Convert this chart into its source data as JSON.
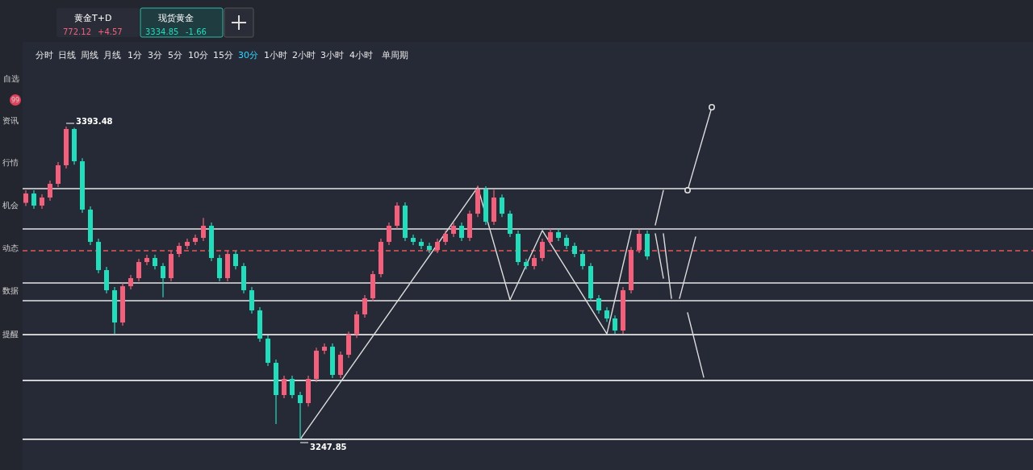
{
  "chart_data": {
    "type": "candlestick",
    "categories": [
      null,
      null,
      null,
      null,
      null,
      null,
      null,
      null,
      null,
      null,
      null,
      null,
      null,
      null,
      null,
      null,
      null,
      null,
      null,
      null,
      null,
      null,
      null,
      null,
      null,
      null,
      null,
      null,
      null,
      null,
      null,
      null,
      null,
      null,
      null,
      null,
      null,
      null,
      null,
      null,
      null,
      null,
      null,
      null,
      null,
      null,
      null,
      null,
      null,
      null,
      null,
      null,
      null,
      null,
      null,
      null,
      null,
      null,
      null,
      null,
      null,
      null,
      null,
      null,
      null,
      null,
      null,
      null,
      null,
      null,
      null,
      null,
      null,
      null,
      null,
      null,
      null,
      null,
      null,
      null,
      null,
      null,
      null,
      null,
      null,
      null,
      null,
      null,
      null,
      null,
      null,
      null,
      null,
      null,
      null,
      null,
      null,
      null,
      null,
      null,
      null,
      null,
      null,
      null,
      null,
      null,
      null,
      null,
      null,
      null,
      null,
      null,
      null,
      null,
      null,
      null,
      null,
      null,
      null,
      null,
      null,
      null,
      null,
      null,
      null
    ],
    "colors": [
      "#f2607c",
      "#22dcbc",
      "#f2607c",
      "#f2607c",
      "#f2607c",
      "#f2607c",
      "#22dcbc",
      "#22dcbc",
      "#22dcbc",
      "#22dcbc",
      "#22dcbc",
      "#22dcbc",
      "#f2607c",
      "#f2607c",
      "#f2607c",
      "#f2607c",
      "#22dcbc",
      "#22dcbc",
      "#f2607c",
      "#f2607c",
      "#f2607c",
      "#f2607c",
      "#f2607c",
      "#22dcbc",
      "#22dcbc",
      "#f2607c",
      "#22dcbc",
      "#22dcbc",
      "#22dcbc",
      "#22dcbc",
      "#22dcbc",
      "#22dcbc",
      "#f2607c",
      "#22dcbc",
      "#22dcbc",
      "#f2607c",
      "#f2607c",
      "#f2607c",
      "#22dcbc",
      "#f2607c",
      "#f2607c",
      "#f2607c",
      "#f2607c",
      "#f2607c",
      "#f2607c",
      "#f2607c",
      "#f2607c",
      "#22dcbc",
      "#22dcbc",
      "#22dcbc",
      "#22dcbc",
      "#f2607c",
      "#f2607c",
      "#f2607c",
      "#22dcbc",
      "#f2607c",
      "#f2607c",
      "#22dcbc",
      "#f2607c",
      "#22dcbc",
      "#22dcbc",
      "#22dcbc",
      "#22dcbc",
      "#f2607c",
      "#f2607c",
      "#f2607c",
      "#22dcbc",
      "#22dcbc",
      "#22dcbc",
      "#22dcbc",
      "#22dcbc",
      "#22dcbc",
      "#22dcbc",
      "#22dcbc",
      "#f2607c",
      "#f2607c",
      "#f2607c",
      "#22dcbc",
      null,
      null,
      null,
      null,
      null,
      null,
      null,
      null,
      null,
      null,
      null,
      null,
      null,
      null,
      null,
      null,
      null,
      null,
      null,
      null,
      null,
      null,
      null,
      null,
      null,
      null,
      null,
      null,
      null,
      null,
      null,
      null,
      null,
      null,
      null,
      null,
      null,
      null,
      null,
      null,
      null,
      null,
      null,
      null,
      null,
      null,
      null
    ],
    "ohlc": [
      [
        3358.0,
        3363.8,
        3356.5,
        3362.33
      ],
      [
        3362.33,
        3363.8,
        3355.2,
        3356.7
      ],
      [
        3356.7,
        3362.0,
        3355.2,
        3360.45
      ],
      [
        3360.45,
        3368.3,
        3359.0,
        3366.83
      ],
      [
        3366.83,
        3377.0,
        3365.3,
        3375.47
      ],
      [
        3375.47,
        3393.48,
        3374.0,
        3392.36
      ],
      [
        3392.36,
        3392.9,
        3375.8,
        3377.34
      ],
      [
        3377.34,
        3378.8,
        3353.3,
        3354.82
      ],
      [
        3354.82,
        3356.3,
        3338.3,
        3339.81
      ],
      [
        3339.81,
        3341.3,
        3325.2,
        3326.67
      ],
      [
        3326.67,
        3328.2,
        3315.8,
        3317.29
      ],
      [
        3317.29,
        3318.8,
        3297.0,
        3302.27
      ],
      [
        3302.27,
        3320.7,
        3300.8,
        3319.16
      ],
      [
        3319.16,
        3324.4,
        3317.7,
        3322.92
      ],
      [
        3322.92,
        3331.9,
        3321.4,
        3330.42
      ],
      [
        3330.42,
        3333.8,
        3328.9,
        3332.3
      ],
      [
        3332.3,
        3333.8,
        3327.0,
        3328.55
      ],
      [
        3328.55,
        3330.0,
        3314.0,
        3322.92
      ],
      [
        3322.92,
        3335.7,
        3321.4,
        3334.18
      ],
      [
        3334.18,
        3339.4,
        3332.7,
        3337.93
      ],
      [
        3337.93,
        3341.3,
        3336.4,
        3339.81
      ],
      [
        3339.81,
        3343.2,
        3338.3,
        3341.68
      ],
      [
        3341.68,
        3351.0,
        3340.2,
        3347.31
      ],
      [
        3347.31,
        3348.8,
        3330.8,
        3332.3
      ],
      [
        3332.3,
        3333.8,
        3321.4,
        3322.92
      ],
      [
        3322.92,
        3335.7,
        3321.4,
        3334.18
      ],
      [
        3334.18,
        3335.7,
        3327.0,
        3328.55
      ],
      [
        3328.55,
        3330.0,
        3315.8,
        3317.29
      ],
      [
        3317.29,
        3318.8,
        3306.4,
        3307.9
      ],
      [
        3307.9,
        3309.4,
        3293.3,
        3294.77
      ],
      [
        3294.77,
        3296.3,
        3282.0,
        3283.51
      ],
      [
        3283.51,
        3285.0,
        3255.0,
        3268.49
      ],
      [
        3268.49,
        3277.5,
        3267.0,
        3276.0
      ],
      [
        3276.0,
        3277.5,
        3267.0,
        3268.49
      ],
      [
        3268.49,
        3270.0,
        3247.85,
        3264.74
      ],
      [
        3264.74,
        3277.5,
        3263.2,
        3276.0
      ],
      [
        3276.0,
        3290.6,
        3274.5,
        3289.14
      ],
      [
        3289.14,
        3292.5,
        3287.6,
        3291.01
      ],
      [
        3291.01,
        3292.5,
        3276.4,
        3277.88
      ],
      [
        3277.88,
        3288.8,
        3276.4,
        3287.26
      ],
      [
        3287.26,
        3298.1,
        3285.8,
        3296.64
      ],
      [
        3296.64,
        3307.5,
        3295.1,
        3306.03
      ],
      [
        3306.03,
        3315.0,
        3304.5,
        3313.53
      ],
      [
        3313.53,
        3326.3,
        3312.0,
        3324.79
      ],
      [
        3324.79,
        3341.3,
        3323.3,
        3339.81
      ],
      [
        3339.81,
        3348.8,
        3338.3,
        3347.31
      ],
      [
        3347.31,
        3358.2,
        3345.8,
        3356.7
      ],
      [
        3356.7,
        3358.2,
        3340.2,
        3341.68
      ],
      [
        3341.68,
        3343.2,
        3338.3,
        3339.81
      ],
      [
        3339.81,
        3341.3,
        3336.4,
        3337.93
      ],
      [
        3337.93,
        3339.4,
        3334.6,
        3336.05
      ],
      [
        3336.05,
        3341.3,
        3334.6,
        3339.81
      ],
      [
        3339.81,
        3345.1,
        3338.3,
        3343.56
      ],
      [
        3343.56,
        3348.8,
        3342.1,
        3347.31
      ],
      [
        3347.31,
        3348.8,
        3340.2,
        3341.68
      ],
      [
        3341.68,
        3354.4,
        3340.2,
        3352.94
      ],
      [
        3352.94,
        3366.0,
        3351.4,
        3364.21
      ],
      [
        3364.21,
        3365.7,
        3347.7,
        3349.19
      ],
      [
        3349.19,
        3364.0,
        3347.7,
        3360.45
      ],
      [
        3360.45,
        3361.9,
        3351.4,
        3352.94
      ],
      [
        3352.94,
        3354.4,
        3342.1,
        3343.56
      ],
      [
        3343.56,
        3345.1,
        3328.9,
        3330.42
      ],
      [
        3330.42,
        3331.9,
        3327.0,
        3328.55
      ],
      [
        3328.55,
        3333.8,
        3327.0,
        3332.3
      ],
      [
        3332.3,
        3341.3,
        3330.8,
        3339.81
      ],
      [
        3339.81,
        3346.0,
        3338.3,
        3344.31
      ],
      [
        3344.31,
        3345.8,
        3340.2,
        3341.68
      ],
      [
        3341.68,
        3343.2,
        3336.4,
        3337.93
      ],
      [
        3337.93,
        3339.4,
        3332.7,
        3334.18
      ],
      [
        3334.18,
        3335.7,
        3327.0,
        3328.55
      ],
      [
        3328.55,
        3330.0,
        3312.0,
        3313.53
      ],
      [
        3313.53,
        3315.0,
        3306.4,
        3307.9
      ],
      [
        3307.9,
        3309.4,
        3302.6,
        3304.15
      ],
      [
        3304.15,
        3305.6,
        3297.0,
        3298.52
      ],
      [
        3298.52,
        3318.8,
        3297.0,
        3317.29
      ],
      [
        3317.29,
        3337.5,
        3315.8,
        3336.05
      ],
      [
        3336.05,
        3345.5,
        3334.6,
        3343.56
      ],
      [
        3343.56,
        3345.1,
        3331.5,
        3333.05
      ],
      null,
      null,
      null,
      null,
      null,
      null,
      null,
      null,
      null,
      null,
      null,
      null,
      null,
      null,
      null,
      null,
      null,
      null,
      null,
      null,
      null,
      null,
      null,
      null,
      null,
      null,
      null,
      null,
      null,
      null,
      null,
      null,
      null,
      null,
      null,
      null,
      null,
      null,
      null,
      null,
      null,
      null,
      null,
      null,
      null,
      null,
      null
    ],
    "series": [
      {
        "type": "line",
        "color": "#dcdcdc",
        "values": [
          null,
          null,
          null,
          null,
          null,
          null,
          null,
          null,
          null,
          null,
          null,
          null,
          null,
          null,
          null,
          null,
          null,
          null,
          null,
          null,
          null,
          null,
          null,
          null,
          null,
          null,
          null,
          null,
          null,
          null,
          null,
          null,
          null,
          null,
          3247.9,
          null,
          null,
          null,
          null,
          null,
          null,
          null,
          null,
          null,
          null,
          null,
          null,
          null,
          null,
          null,
          null,
          null,
          null,
          null,
          null,
          null,
          3365.3,
          null,
          null,
          null,
          3312.8,
          null,
          null,
          null,
          3345.1,
          null,
          null,
          null,
          null,
          null,
          null,
          null,
          3297.0,
          null,
          null,
          3345.1,
          null,
          null,
          null,
          null,
          null,
          null,
          null,
          null,
          null,
          null,
          null,
          null,
          null,
          null,
          null,
          null,
          null,
          null,
          null,
          null,
          null,
          null,
          null,
          null,
          null,
          null,
          null,
          null,
          null,
          null,
          null,
          null,
          null,
          null,
          null,
          null,
          null,
          null,
          null,
          null,
          null,
          null,
          null,
          null,
          null,
          null,
          null,
          null,
          null
        ]
      },
      {
        "type": "line",
        "color": "#dcdcdc",
        "values": [
          null,
          null,
          null,
          null,
          null,
          null,
          null,
          null,
          null,
          null,
          null,
          null,
          null,
          null,
          null,
          null,
          null,
          null,
          null,
          null,
          null,
          null,
          null,
          null,
          null,
          null,
          null,
          null,
          null,
          null,
          null,
          null,
          null,
          null,
          null,
          null,
          null,
          null,
          null,
          null,
          null,
          null,
          null,
          null,
          null,
          null,
          null,
          null,
          null,
          null,
          null,
          null,
          null,
          null,
          null,
          null,
          null,
          null,
          null,
          null,
          null,
          null,
          null,
          null,
          null,
          null,
          null,
          null,
          null,
          null,
          null,
          null,
          null,
          null,
          null,
          null,
          null,
          null,
          3347.7,
          3363.8,
          null,
          null,
          null,
          null,
          null,
          null,
          null,
          null,
          null,
          null,
          null,
          null,
          null,
          null,
          null,
          null,
          null,
          null,
          null,
          null,
          null,
          null,
          null,
          null,
          null,
          null,
          null,
          null,
          null,
          null,
          null,
          null,
          null,
          null,
          null,
          null,
          null,
          null,
          null,
          null,
          null,
          null,
          null,
          null,
          null
        ]
      },
      {
        "type": "line",
        "color": "#dcdcdc",
        "values": [
          null,
          null,
          null,
          null,
          null,
          null,
          null,
          null,
          null,
          null,
          null,
          null,
          null,
          null,
          null,
          null,
          null,
          null,
          null,
          null,
          null,
          null,
          null,
          null,
          null,
          null,
          null,
          null,
          null,
          null,
          null,
          null,
          null,
          null,
          null,
          null,
          null,
          null,
          null,
          null,
          null,
          null,
          null,
          null,
          null,
          null,
          null,
          null,
          null,
          null,
          null,
          null,
          null,
          null,
          null,
          null,
          null,
          null,
          null,
          null,
          null,
          null,
          null,
          null,
          null,
          null,
          null,
          null,
          null,
          null,
          null,
          null,
          null,
          null,
          null,
          null,
          null,
          null,
          null,
          3343.6,
          3313.5,
          null,
          null,
          null,
          null,
          null,
          null,
          null,
          null,
          null,
          null,
          null,
          null,
          null,
          null,
          null,
          null,
          null,
          null,
          null,
          null,
          null,
          null,
          null,
          null,
          null,
          null,
          null,
          null,
          null,
          null,
          null,
          null,
          null,
          null,
          null,
          null,
          null,
          null,
          null,
          null,
          null,
          null,
          null,
          null
        ]
      },
      {
        "type": "line",
        "color": "#dcdcdc",
        "values": [
          null,
          null,
          null,
          null,
          null,
          null,
          null,
          null,
          null,
          null,
          null,
          null,
          null,
          null,
          null,
          null,
          null,
          null,
          null,
          null,
          null,
          null,
          null,
          null,
          null,
          null,
          null,
          null,
          null,
          null,
          null,
          null,
          null,
          null,
          null,
          null,
          null,
          null,
          null,
          null,
          null,
          null,
          null,
          null,
          null,
          null,
          null,
          null,
          null,
          null,
          null,
          null,
          null,
          null,
          null,
          null,
          null,
          null,
          null,
          null,
          null,
          null,
          null,
          null,
          null,
          null,
          null,
          null,
          null,
          null,
          null,
          null,
          null,
          null,
          null,
          null,
          null,
          null,
          null,
          null,
          null,
          3313.5,
          null,
          3342.1,
          null,
          null,
          null,
          null,
          null,
          null,
          null,
          null,
          null,
          null,
          null,
          null,
          null,
          null,
          null,
          null,
          null,
          null,
          null,
          null,
          null,
          null,
          null,
          null,
          null,
          null,
          null,
          null,
          null,
          null,
          null,
          null,
          null,
          null,
          null,
          null,
          null,
          null,
          null,
          null,
          null
        ]
      },
      {
        "type": "line",
        "color": "#dcdcdc",
        "values": [
          null,
          null,
          null,
          null,
          null,
          null,
          null,
          null,
          null,
          null,
          null,
          null,
          null,
          null,
          null,
          null,
          null,
          null,
          null,
          null,
          null,
          null,
          null,
          null,
          null,
          null,
          null,
          null,
          null,
          null,
          null,
          null,
          null,
          null,
          null,
          null,
          null,
          null,
          null,
          null,
          null,
          null,
          null,
          null,
          null,
          null,
          null,
          null,
          null,
          null,
          null,
          null,
          null,
          null,
          null,
          null,
          null,
          null,
          null,
          null,
          null,
          null,
          null,
          null,
          null,
          null,
          null,
          null,
          null,
          null,
          null,
          null,
          null,
          null,
          null,
          null,
          null,
          null,
          3343.6,
          3322.9,
          null,
          null,
          null,
          null,
          null,
          null,
          null,
          null,
          null,
          null,
          null,
          null,
          null,
          null,
          null,
          null,
          null,
          null,
          null,
          null,
          null,
          null,
          null,
          null,
          null,
          null,
          null,
          null,
          null,
          null,
          null,
          null,
          null,
          null,
          null,
          null,
          null,
          null,
          null,
          null,
          null,
          null,
          null,
          null,
          null
        ]
      },
      {
        "type": "line",
        "color": "#dcdcdc",
        "values": [
          null,
          null,
          null,
          null,
          null,
          null,
          null,
          null,
          null,
          null,
          null,
          null,
          null,
          null,
          null,
          null,
          null,
          null,
          null,
          null,
          null,
          null,
          null,
          null,
          null,
          null,
          null,
          null,
          null,
          null,
          null,
          null,
          null,
          null,
          null,
          null,
          null,
          null,
          null,
          null,
          null,
          null,
          null,
          null,
          null,
          null,
          null,
          null,
          null,
          null,
          null,
          null,
          null,
          null,
          null,
          null,
          null,
          null,
          null,
          null,
          null,
          null,
          null,
          null,
          null,
          null,
          null,
          null,
          null,
          null,
          null,
          null,
          null,
          null,
          null,
          null,
          null,
          null,
          null,
          null,
          null,
          null,
          3306.8,
          null,
          3276.8,
          null,
          null,
          null,
          null,
          null,
          null,
          null,
          null,
          null,
          null,
          null,
          null,
          null,
          null,
          null,
          null,
          null,
          null,
          null,
          null,
          null,
          null,
          null,
          null,
          null,
          null,
          null,
          null,
          null,
          null,
          null,
          null,
          null,
          null,
          null,
          null,
          null,
          null,
          null,
          null
        ]
      },
      {
        "type": "line",
        "color": "#dcdcdc",
        "marker": "circle",
        "values": [
          null,
          null,
          null,
          null,
          null,
          null,
          null,
          null,
          null,
          null,
          null,
          null,
          null,
          null,
          null,
          null,
          null,
          null,
          null,
          null,
          null,
          null,
          null,
          null,
          null,
          null,
          null,
          null,
          null,
          null,
          null,
          null,
          null,
          null,
          null,
          null,
          null,
          null,
          null,
          null,
          null,
          null,
          null,
          null,
          null,
          null,
          null,
          null,
          null,
          null,
          null,
          null,
          null,
          null,
          null,
          null,
          null,
          null,
          null,
          null,
          null,
          null,
          null,
          null,
          null,
          null,
          null,
          null,
          null,
          null,
          null,
          null,
          null,
          null,
          null,
          null,
          null,
          null,
          null,
          null,
          null,
          null,
          3363.8,
          null,
          null,
          3402.5,
          null,
          null,
          null,
          null,
          null,
          null,
          null,
          null,
          null,
          null,
          null,
          null,
          null,
          null,
          null,
          null,
          null,
          null,
          null,
          null,
          null,
          null,
          null,
          null,
          null,
          null,
          null,
          null,
          null,
          null,
          null,
          null,
          null,
          null,
          null,
          null,
          null,
          null,
          null
        ]
      }
    ],
    "ylim": [
      3233.6,
      3432.9
    ],
    "ref_lines": [
      {
        "axis": "y",
        "value": 3364.6,
        "color": "#e6e6e6"
      },
      {
        "axis": "y",
        "value": 3345.8,
        "color": "#e6e6e6"
      },
      {
        "axis": "y",
        "value": 3335.7,
        "color": "#e05a5a",
        "line_style": "dashed"
      },
      {
        "axis": "y",
        "value": 3320.7,
        "color": "#e6e6e6"
      },
      {
        "axis": "y",
        "value": 3312.4,
        "color": "#e6e6e6"
      },
      {
        "axis": "y",
        "value": 3296.6,
        "color": "#e6e6e6"
      },
      {
        "axis": "y",
        "value": 3275.3,
        "color": "#e6e6e6"
      },
      {
        "axis": "y",
        "value": 3247.9,
        "color": "#e6e6e6"
      }
    ],
    "annotations": [
      "3393.48",
      "3247.85",
      "黄金T+D",
      "772.12",
      "+4.57",
      "现货黄金",
      "3334.85",
      "-1.66",
      "分时",
      "日线",
      "周线",
      "月线",
      "1分",
      "3分",
      "5分",
      "10分",
      "15分",
      "30分",
      "1小时",
      "2小时",
      "3小时",
      "4小时",
      "单周期",
      "自选",
      "99",
      "资讯",
      "行情",
      "机会",
      "动态",
      "数据",
      "提醒"
    ]
  }
}
